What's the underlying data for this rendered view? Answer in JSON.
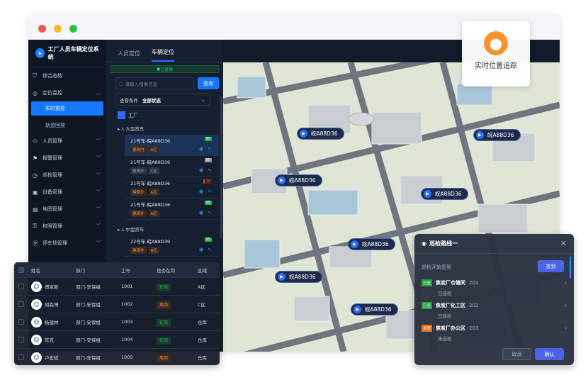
{
  "window": {
    "dots": [
      "#ee5a52",
      "#f5b82e",
      "#2cc43f"
    ]
  },
  "app": {
    "title": "工厂人员车辆定位系统"
  },
  "sidebar": {
    "items": [
      {
        "label": "综合态势",
        "icon": "shield-icon"
      },
      {
        "label": "定位监控",
        "icon": "location-icon",
        "expanded": true,
        "children": [
          {
            "label": "实时监控",
            "active": true
          },
          {
            "label": "轨迹回放"
          }
        ]
      },
      {
        "label": "人员管理",
        "icon": "user-icon"
      },
      {
        "label": "报警管理",
        "icon": "alarm-icon"
      },
      {
        "label": "巡检管理",
        "icon": "patrol-icon"
      },
      {
        "label": "设备管理",
        "icon": "device-icon"
      },
      {
        "label": "地图管理",
        "icon": "map-icon"
      },
      {
        "label": "权限管理",
        "icon": "lock-icon"
      },
      {
        "label": "停车场管理",
        "icon": "parking-icon"
      }
    ]
  },
  "panel": {
    "tabs": [
      "人员定位",
      "车辆定位"
    ],
    "active_tab": 1,
    "connection": "已连接",
    "search": {
      "placeholder": "请输入搜索信息",
      "button": "查询"
    },
    "filter": {
      "label": "查看条件",
      "value": "全部状态"
    },
    "root": "工厂",
    "groups": [
      {
        "name": "大型货车",
        "vehicles": [
          {
            "name": "21号车-皖A88D36",
            "tags": [
              "建筑内",
              "A区"
            ],
            "battery": "95",
            "selected": true
          },
          {
            "name": "21号车-皖A88D36",
            "tags": [
              "建筑外",
              "C区"
            ],
            "battery": "95",
            "gray": true
          },
          {
            "name": "21号车-皖A88D36",
            "tags": [
              "建筑外",
              "A区"
            ],
            "battery": "16",
            "low": true
          },
          {
            "name": "21号车-皖A88D36",
            "tags": [
              "建筑外",
              "A区"
            ],
            "battery": "95"
          }
        ]
      },
      {
        "name": "中型货车",
        "vehicles": [
          {
            "name": "22号车-皖A88D39",
            "tags": [
              "建筑外",
              "B区"
            ],
            "battery": "95"
          }
        ]
      }
    ]
  },
  "map": {
    "markers": [
      "皖A88D36",
      "皖A88D36",
      "皖A88D36",
      "皖A88D36",
      "皖A88D36",
      "皖A88D36",
      "皖A88D36"
    ]
  },
  "badge": {
    "label": "实时位置追踪",
    "color": "#f59330"
  },
  "people_table": {
    "columns": [
      "姓名",
      "部门",
      "工号",
      "是否在岗",
      "区域"
    ],
    "rows": [
      {
        "name": "傅家新",
        "dept": "部门-安保组",
        "id": "1001",
        "status": "在岗",
        "area": "A区"
      },
      {
        "name": "胡森博",
        "dept": "部门-安保组",
        "id": "1002",
        "status": "离岗",
        "area": "C区"
      },
      {
        "name": "杨建林",
        "dept": "部门-安保组",
        "id": "1003",
        "status": "在岗",
        "area": "仓库"
      },
      {
        "name": "陈克",
        "dept": "部门-安保组",
        "id": "1004",
        "status": "在岗",
        "area": "仓库"
      },
      {
        "name": "卢宏斌",
        "dept": "部门-安保组",
        "id": "1005",
        "status": "离岗",
        "area": "仓库"
      }
    ]
  },
  "patrol": {
    "title": "巡检路线一",
    "start_label": "巡检开始签到",
    "signin": "签到",
    "points": [
      {
        "tag": "已查",
        "name": "焦炭厂仓储间",
        "no": "201",
        "status": "已巡检",
        "done": true
      },
      {
        "tag": "已查",
        "name": "焦炭厂化工区",
        "no": "202",
        "status": "已巡检",
        "done": true
      },
      {
        "tag": "未查",
        "name": "焦炭厂办公区",
        "no": "203",
        "status": "未巡检",
        "done": false
      }
    ],
    "cancel": "取消",
    "confirm": "确认"
  }
}
